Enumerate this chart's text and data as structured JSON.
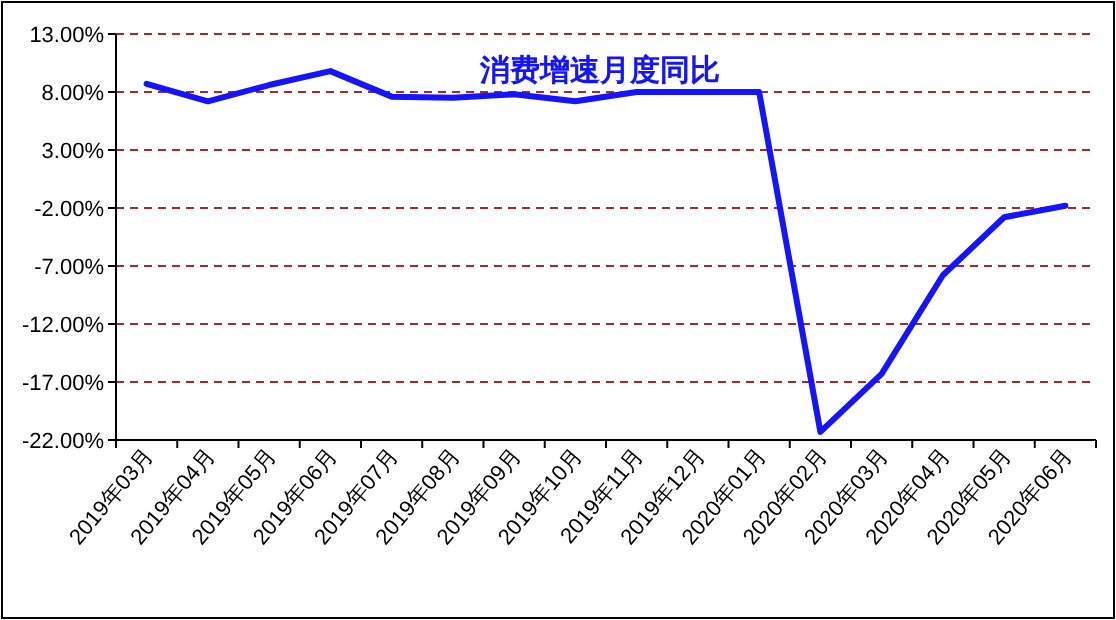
{
  "chart_data": {
    "type": "line",
    "title": "消费增速月度同比",
    "categories": [
      "2019年03月",
      "2019年04月",
      "2019年05月",
      "2019年06月",
      "2019年07月",
      "2019年08月",
      "2019年09月",
      "2019年10月",
      "2019年11月",
      "2019年12月",
      "2020年01月",
      "2020年02月",
      "2020年03月",
      "2020年04月",
      "2020年05月",
      "2020年06月"
    ],
    "series": [
      {
        "color": "#1414ff",
        "values": [
          8.7,
          7.2,
          8.6,
          9.8,
          7.6,
          7.5,
          7.8,
          7.2,
          8.0,
          8.0,
          8.0,
          -21.3,
          -16.3,
          -7.8,
          -2.8,
          -1.8
        ]
      }
    ],
    "ylim": [
      -22,
      13
    ],
    "yticks": [
      {
        "value": 13,
        "label": "13.00%"
      },
      {
        "value": 8,
        "label": "8.00%"
      },
      {
        "value": 3,
        "label": "3.00%"
      },
      {
        "value": -2,
        "label": "-2.00%"
      },
      {
        "value": -7,
        "label": "-7.00%"
      },
      {
        "value": -12,
        "label": "-12.00%"
      },
      {
        "value": -17,
        "label": "-17.00%"
      },
      {
        "value": -22,
        "label": "-22.00%"
      }
    ],
    "grid": "y",
    "line_style": "solid",
    "marker": "none"
  }
}
